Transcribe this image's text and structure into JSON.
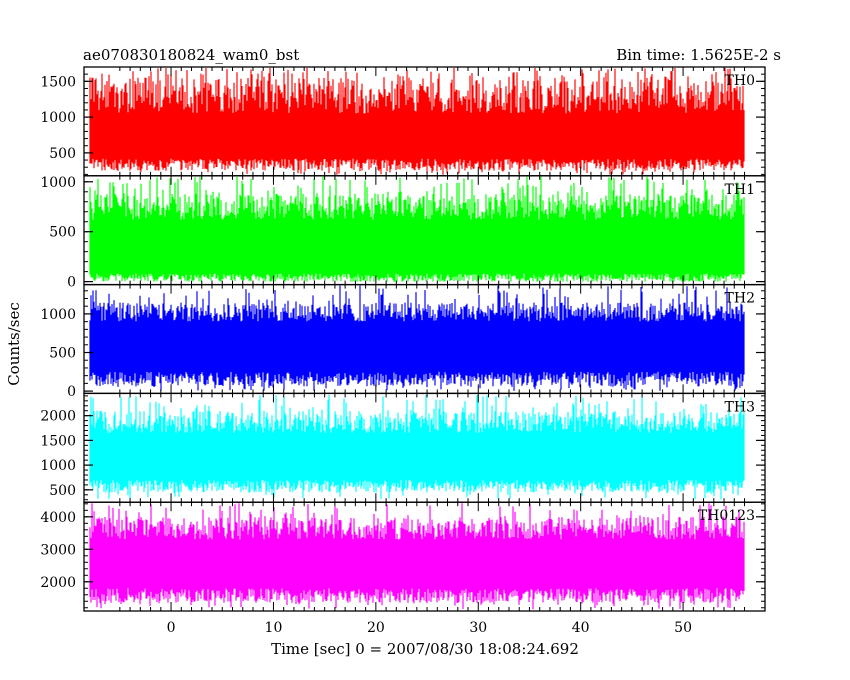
{
  "header": {
    "left": "ae070830180824_wam0_bst",
    "right": "Bin time: 1.5625E-2 s"
  },
  "chart_data": {
    "type": "line",
    "title": "ae070830180824_wam0_bst",
    "subtitle": "Bin time: 1.5625E-2 s",
    "xlabel": "Time [sec] 0 = 2007/08/30 18:08:24.692",
    "ylabel": "Counts/sec",
    "xlim": [
      -8.5,
      58
    ],
    "data_range_x": [
      -8,
      56
    ],
    "xticks": [
      0,
      10,
      20,
      30,
      40,
      50
    ],
    "xtick_labels": [
      "0",
      "10",
      "20",
      "30",
      "40",
      "50"
    ],
    "grid": false,
    "legend": "none",
    "panels": [
      {
        "name": "TH0",
        "color": "#ff0000",
        "ylim": [
          180,
          1700
        ],
        "yticks": [
          500,
          1000,
          1500
        ],
        "ytick_labels": [
          "500",
          "1000",
          "1500"
        ],
        "band": {
          "low": [
            250,
            420
          ],
          "high": [
            1050,
            1550
          ],
          "spike_max": 1700,
          "dip_min": 180
        }
      },
      {
        "name": "TH1",
        "color": "#00ff00",
        "ylim": [
          -30,
          1060
        ],
        "yticks": [
          0,
          500,
          1000
        ],
        "ytick_labels": [
          "0",
          "500",
          "1000"
        ],
        "band": {
          "low": [
            0,
            80
          ],
          "high": [
            620,
            880
          ],
          "spike_max": 1060,
          "dip_min": 0
        }
      },
      {
        "name": "TH2",
        "color": "#0000ff",
        "ylim": [
          -30,
          1380
        ],
        "yticks": [
          0,
          500,
          1000
        ],
        "ytick_labels": [
          "0",
          "500",
          "1000"
        ],
        "band": {
          "low": [
            60,
            250
          ],
          "high": [
            900,
            1150
          ],
          "spike_max": 1380,
          "dip_min": 0
        }
      },
      {
        "name": "TH3",
        "color": "#00ffff",
        "ylim": [
          250,
          2450
        ],
        "yticks": [
          500,
          1000,
          1500,
          2000
        ],
        "ytick_labels": [
          "500",
          "1000",
          "1500",
          "2000"
        ],
        "band": {
          "low": [
            450,
            700
          ],
          "high": [
            1650,
            2100
          ],
          "spike_max": 2450,
          "dip_min": 300
        }
      },
      {
        "name": "TH0123",
        "color": "#ff00ff",
        "ylim": [
          1100,
          4450
        ],
        "yticks": [
          2000,
          3000,
          4000
        ],
        "ytick_labels": [
          "2000",
          "3000",
          "4000"
        ],
        "band": {
          "low": [
            1350,
            1800
          ],
          "high": [
            3300,
            4000
          ],
          "spike_max": 4450,
          "dip_min": 1150
        }
      }
    ]
  }
}
